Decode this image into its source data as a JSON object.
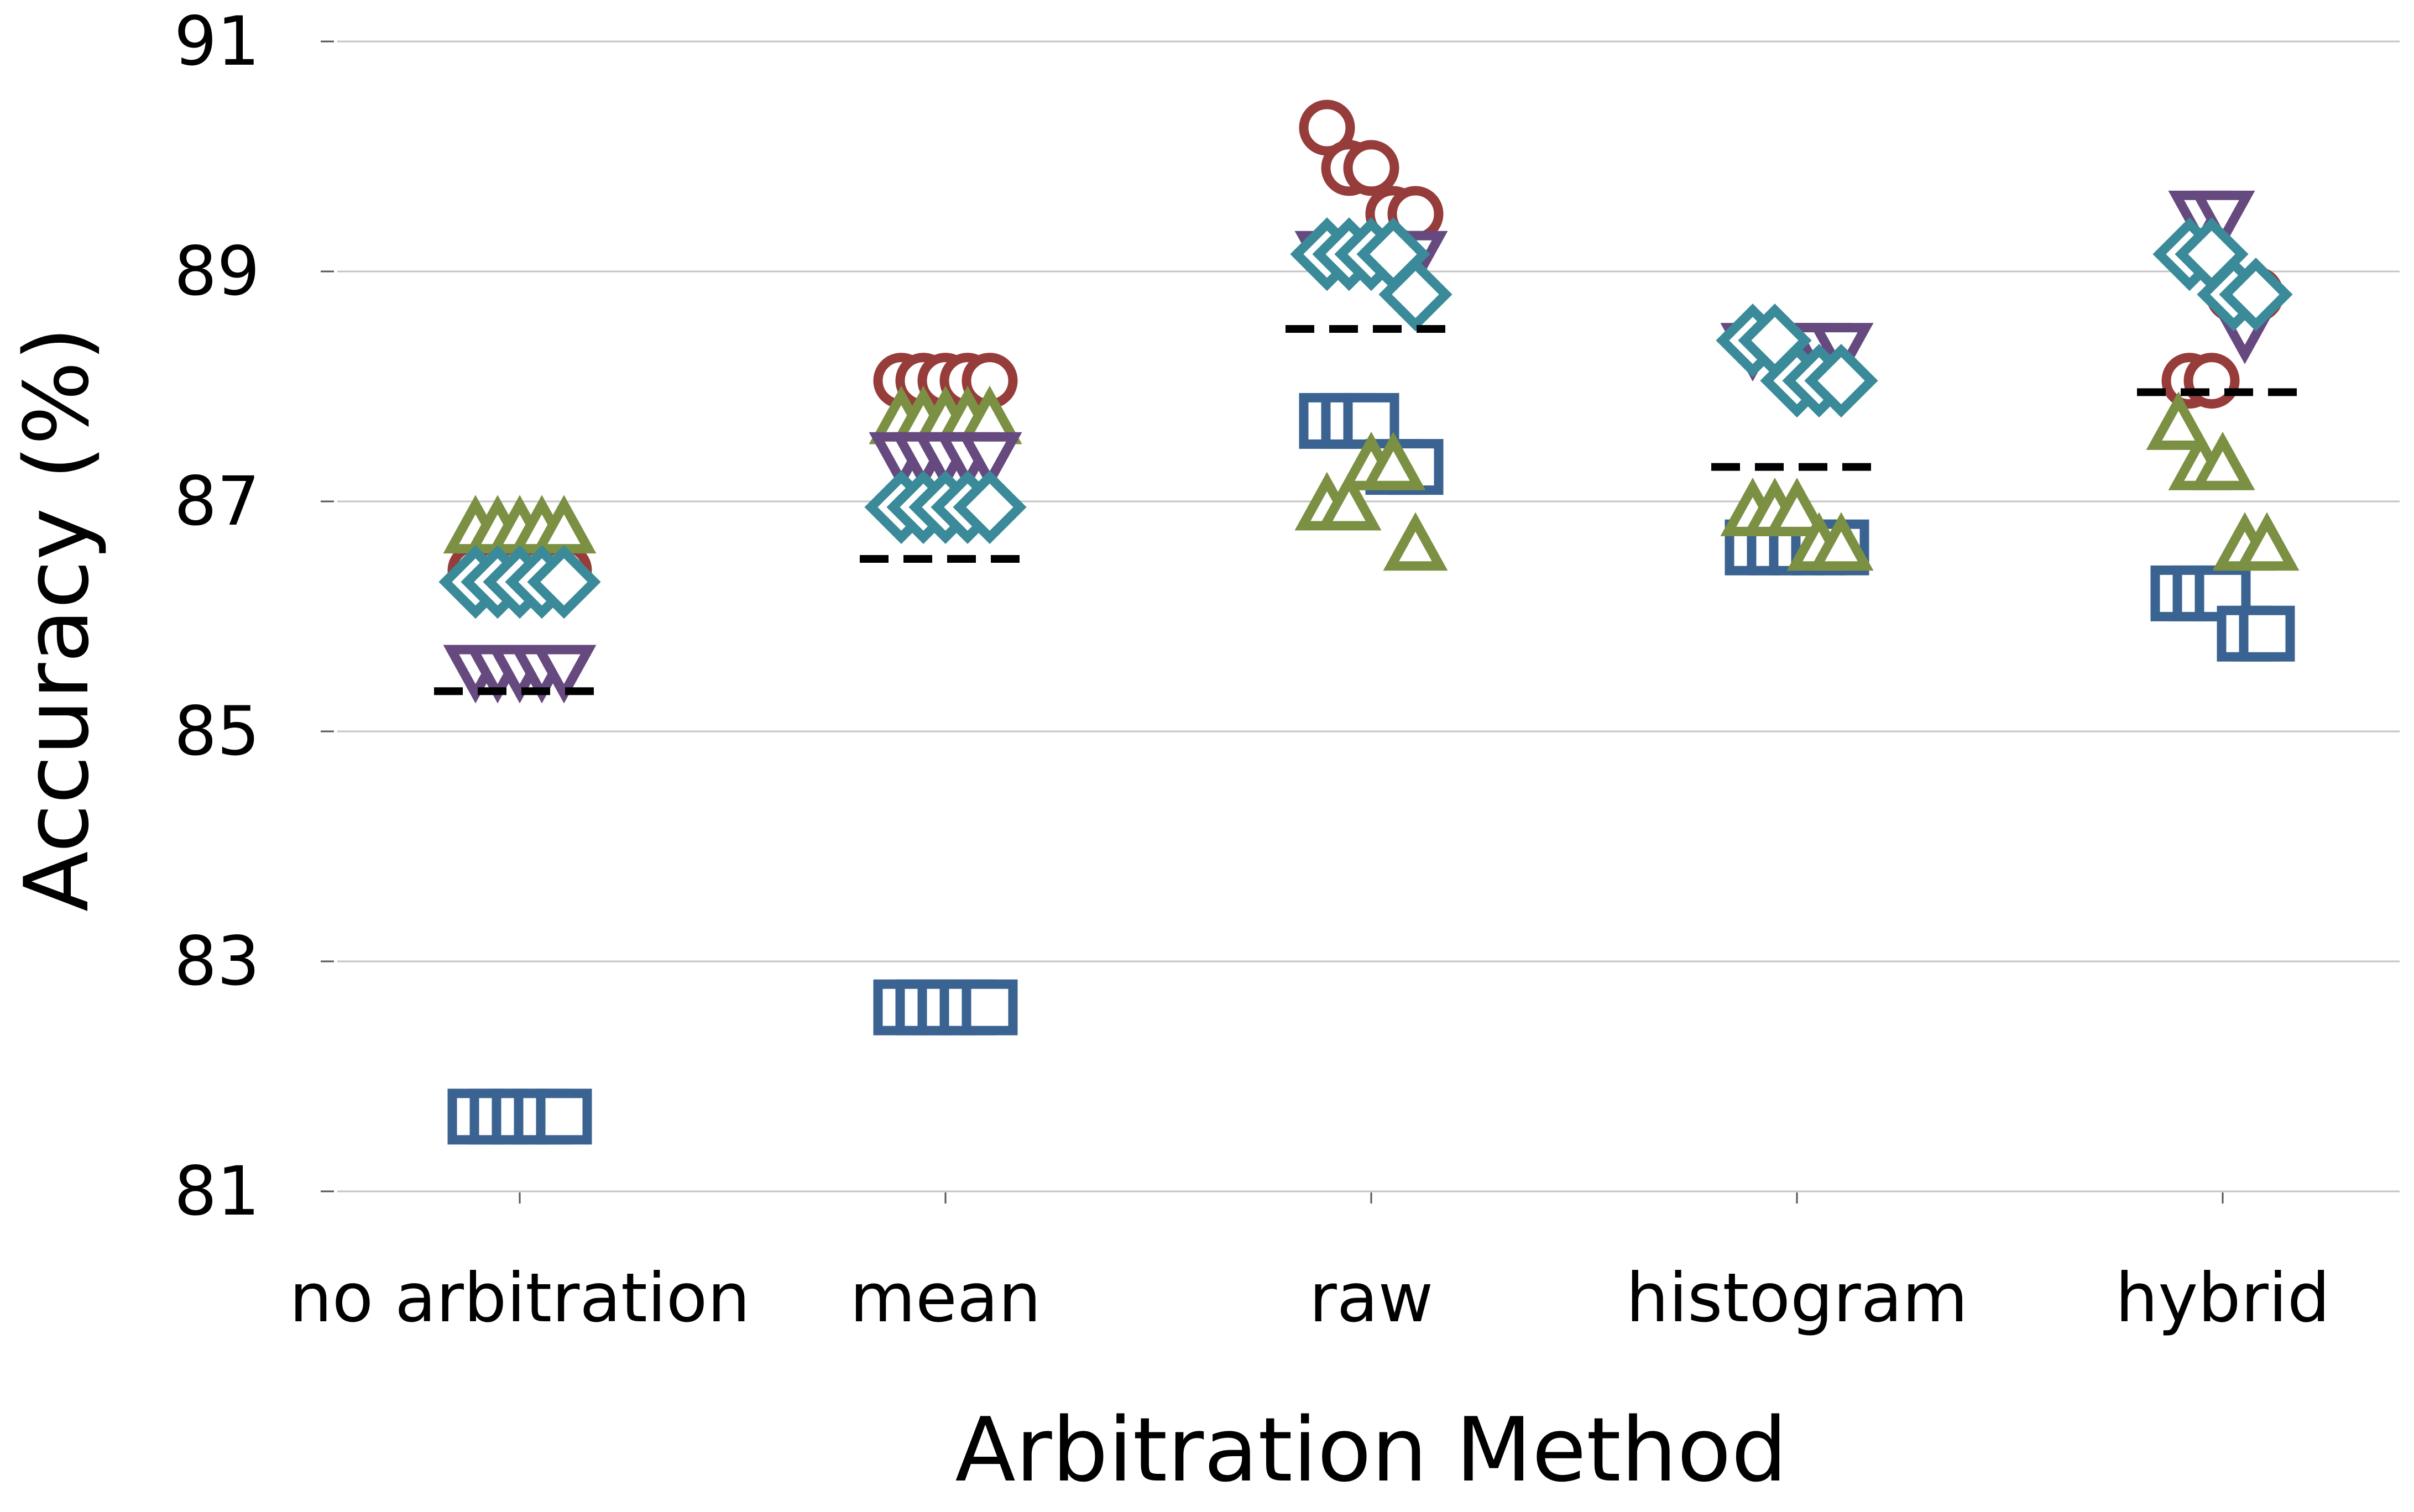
{
  "chart_data": {
    "type": "scatter",
    "title": "",
    "xlabel": "Arbitration Method",
    "ylabel": "Accuracy (%)",
    "categories": [
      "no arbitration",
      "mean",
      "raw",
      "histogram",
      "hybrid"
    ],
    "ylim": [
      81,
      91
    ],
    "yticks": [
      81,
      83,
      85,
      87,
      89,
      91
    ],
    "grid": "horizontal",
    "legend": "none",
    "series": [
      {
        "marker": "circle",
        "color": "#963c3a",
        "points": [
          {
            "category": "no arbitration",
            "values": [
              86.4,
              86.4,
              86.4,
              86.4,
              86.4
            ]
          },
          {
            "category": "mean",
            "values": [
              88.05,
              88.05,
              88.05,
              88.05,
              88.05
            ]
          },
          {
            "category": "raw",
            "values": [
              90.25,
              89.9,
              89.9,
              89.5,
              89.5
            ]
          },
          {
            "category": "histogram",
            "values": [
              86.6,
              86.6,
              86.6,
              86.6,
              86.6
            ]
          },
          {
            "category": "hybrid",
            "values": [
              88.05,
              88.05,
              88.8,
              88.8
            ]
          }
        ]
      },
      {
        "marker": "square",
        "color": "#3a6391",
        "points": [
          {
            "category": "no arbitration",
            "values": [
              81.65,
              81.65,
              81.65,
              81.65,
              81.65
            ]
          },
          {
            "category": "mean",
            "values": [
              82.6,
              82.6,
              82.6,
              82.6,
              82.6
            ]
          },
          {
            "category": "raw",
            "values": [
              87.7,
              87.7,
              87.7,
              87.3,
              87.3
            ]
          },
          {
            "category": "histogram",
            "values": [
              86.6,
              86.6,
              86.6,
              86.6,
              86.6
            ]
          },
          {
            "category": "hybrid",
            "values": [
              86.2,
              86.2,
              86.2,
              85.85,
              85.85
            ]
          }
        ]
      },
      {
        "marker": "triangle-up",
        "color": "#7b9043",
        "points": [
          {
            "category": "no arbitration",
            "values": [
              86.75,
              86.75,
              86.75,
              86.75,
              86.75
            ]
          },
          {
            "category": "mean",
            "values": [
              87.7,
              87.7,
              87.7,
              87.7,
              87.7
            ]
          },
          {
            "category": "raw",
            "values": [
              86.95,
              86.95,
              87.3,
              87.3,
              86.6
            ]
          },
          {
            "category": "histogram",
            "values": [
              86.9,
              86.9,
              86.9,
              86.6,
              86.6
            ]
          },
          {
            "category": "hybrid",
            "values": [
              87.65,
              87.3,
              87.3,
              86.6,
              86.6
            ]
          }
        ]
      },
      {
        "marker": "triangle-down",
        "color": "#664a7f",
        "points": [
          {
            "category": "no arbitration",
            "values": [
              85.55,
              85.55,
              85.55,
              85.55,
              85.55
            ]
          },
          {
            "category": "mean",
            "values": [
              87.4,
              87.4,
              87.4,
              87.4,
              87.4
            ]
          },
          {
            "category": "raw",
            "values": [
              89.15,
              89.15,
              89.15,
              89.15,
              89.15
            ]
          },
          {
            "category": "histogram",
            "values": [
              88.35,
              88.35,
              88.35,
              88.35,
              88.35
            ]
          },
          {
            "category": "hybrid",
            "values": [
              89.5,
              89.5,
              88.5
            ]
          }
        ]
      },
      {
        "marker": "diamond",
        "color": "#3a8a99",
        "points": [
          {
            "category": "no arbitration",
            "values": [
              86.3,
              86.3,
              86.3,
              86.3,
              86.3
            ]
          },
          {
            "category": "mean",
            "values": [
              86.95,
              86.95,
              86.95,
              86.95,
              86.95
            ]
          },
          {
            "category": "raw",
            "values": [
              89.15,
              89.15,
              89.15,
              89.15,
              88.8
            ]
          },
          {
            "category": "histogram",
            "values": [
              88.4,
              88.4,
              88.05,
              88.05,
              88.05
            ]
          },
          {
            "category": "hybrid",
            "values": [
              89.15,
              89.15,
              88.8,
              88.8
            ]
          }
        ]
      }
    ],
    "means": [
      85.35,
      86.5,
      88.5,
      87.3,
      87.95
    ]
  }
}
